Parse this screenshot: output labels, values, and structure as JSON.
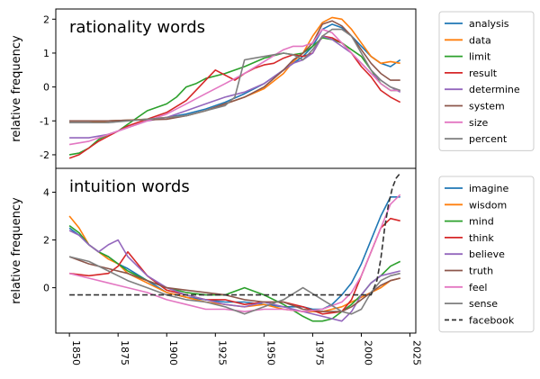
{
  "chart_data": [
    {
      "type": "line",
      "title": "rationality words",
      "ylabel": "relative frequency",
      "xlim": [
        1843,
        2028
      ],
      "ylim": [
        -2.4,
        2.3
      ],
      "yticks": [
        -2,
        -1,
        0,
        1,
        2
      ],
      "legend_position": "right",
      "series": [
        {
          "name": "analysis",
          "color": "#1f77b4",
          "x": [
            1850,
            1860,
            1870,
            1880,
            1890,
            1900,
            1910,
            1920,
            1930,
            1940,
            1950,
            1960,
            1965,
            1970,
            1975,
            1980,
            1985,
            1990,
            1995,
            2000,
            2005,
            2010,
            2015,
            2020
          ],
          "y": [
            -1.0,
            -1.0,
            -1.0,
            -0.98,
            -0.95,
            -0.9,
            -0.8,
            -0.65,
            -0.45,
            -0.2,
            0.1,
            0.5,
            0.7,
            0.9,
            1.2,
            1.7,
            1.85,
            1.75,
            1.5,
            1.2,
            0.9,
            0.7,
            0.6,
            0.8
          ]
        },
        {
          "name": "data",
          "color": "#ff7f0e",
          "x": [
            1850,
            1860,
            1870,
            1880,
            1890,
            1900,
            1910,
            1920,
            1930,
            1940,
            1950,
            1960,
            1965,
            1970,
            1975,
            1980,
            1985,
            1990,
            1995,
            2000,
            2005,
            2010,
            2015,
            2020
          ],
          "y": [
            -1.05,
            -1.05,
            -1.0,
            -0.98,
            -0.95,
            -0.9,
            -0.85,
            -0.7,
            -0.5,
            -0.3,
            -0.05,
            0.4,
            0.75,
            1.0,
            1.5,
            1.9,
            2.05,
            2.0,
            1.7,
            1.3,
            0.9,
            0.7,
            0.75,
            0.7
          ]
        },
        {
          "name": "limit",
          "color": "#2ca02c",
          "x": [
            1850,
            1855,
            1860,
            1865,
            1870,
            1875,
            1880,
            1890,
            1900,
            1905,
            1910,
            1915,
            1920,
            1930,
            1940,
            1950,
            1960,
            1965,
            1970,
            1975,
            1980,
            1985,
            1990,
            1995,
            2000,
            2005,
            2010,
            2015,
            2020
          ],
          "y": [
            -2.0,
            -1.95,
            -1.8,
            -1.55,
            -1.4,
            -1.3,
            -1.1,
            -0.7,
            -0.5,
            -0.3,
            0.0,
            0.1,
            0.25,
            0.4,
            0.6,
            0.85,
            1.0,
            0.95,
            1.0,
            1.2,
            1.45,
            1.4,
            1.3,
            1.1,
            0.9,
            0.5,
            0.1,
            -0.1,
            -0.1
          ]
        },
        {
          "name": "result",
          "color": "#d62728",
          "x": [
            1850,
            1855,
            1860,
            1865,
            1870,
            1875,
            1880,
            1890,
            1900,
            1910,
            1915,
            1920,
            1925,
            1930,
            1935,
            1940,
            1945,
            1950,
            1955,
            1960,
            1965,
            1970,
            1975,
            1980,
            1985,
            1990,
            1995,
            2000,
            2005,
            2010,
            2015,
            2020
          ],
          "y": [
            -2.1,
            -2.0,
            -1.8,
            -1.6,
            -1.45,
            -1.3,
            -1.15,
            -0.95,
            -0.75,
            -0.4,
            -0.1,
            0.2,
            0.5,
            0.35,
            0.2,
            0.4,
            0.55,
            0.65,
            0.7,
            0.85,
            0.95,
            0.9,
            1.0,
            1.5,
            1.45,
            1.3,
            1.0,
            0.6,
            0.3,
            -0.1,
            -0.3,
            -0.45
          ]
        },
        {
          "name": "determine",
          "color": "#9467bd",
          "x": [
            1850,
            1860,
            1870,
            1880,
            1890,
            1900,
            1910,
            1920,
            1930,
            1940,
            1950,
            1960,
            1965,
            1970,
            1975,
            1980,
            1985,
            1990,
            1995,
            2000,
            2005,
            2010,
            2015,
            2020
          ],
          "y": [
            -1.5,
            -1.5,
            -1.4,
            -1.2,
            -1.0,
            -0.9,
            -0.7,
            -0.5,
            -0.3,
            -0.15,
            0.1,
            0.5,
            0.7,
            0.8,
            1.0,
            1.5,
            1.4,
            1.2,
            1.0,
            0.7,
            0.4,
            0.2,
            0.0,
            -0.15
          ]
        },
        {
          "name": "system",
          "color": "#8c564b",
          "x": [
            1850,
            1860,
            1870,
            1880,
            1890,
            1900,
            1910,
            1920,
            1930,
            1940,
            1950,
            1960,
            1965,
            1970,
            1975,
            1980,
            1985,
            1990,
            1995,
            2000,
            2005,
            2010,
            2015,
            2020
          ],
          "y": [
            -1.0,
            -1.0,
            -1.0,
            -0.98,
            -0.97,
            -0.95,
            -0.85,
            -0.7,
            -0.5,
            -0.3,
            0.0,
            0.5,
            0.8,
            1.0,
            1.3,
            1.85,
            1.95,
            1.8,
            1.5,
            1.1,
            0.7,
            0.4,
            0.2,
            0.2
          ]
        },
        {
          "name": "size",
          "color": "#e377c2",
          "x": [
            1850,
            1860,
            1870,
            1880,
            1890,
            1900,
            1910,
            1920,
            1930,
            1940,
            1950,
            1960,
            1965,
            1970,
            1975,
            1980,
            1985,
            1990,
            1995,
            2000,
            2005,
            2010,
            2015,
            2020
          ],
          "y": [
            -1.7,
            -1.6,
            -1.4,
            -1.2,
            -1.0,
            -0.8,
            -0.5,
            -0.2,
            0.1,
            0.4,
            0.75,
            1.1,
            1.2,
            1.2,
            1.3,
            1.7,
            1.6,
            1.3,
            1.0,
            0.7,
            0.4,
            0.1,
            -0.1,
            -0.1
          ]
        },
        {
          "name": "percent",
          "color": "#7f7f7f",
          "x": [
            1850,
            1860,
            1870,
            1880,
            1890,
            1900,
            1910,
            1920,
            1930,
            1935,
            1940,
            1945,
            1950,
            1955,
            1960,
            1965,
            1970,
            1975,
            1980,
            1985,
            1990,
            1995,
            2000,
            2005,
            2010,
            2015,
            2020
          ],
          "y": [
            -1.05,
            -1.05,
            -1.05,
            -1.0,
            -0.95,
            -0.9,
            -0.85,
            -0.7,
            -0.55,
            -0.3,
            0.8,
            0.85,
            0.9,
            0.95,
            1.0,
            0.95,
            0.8,
            1.1,
            1.5,
            1.7,
            1.7,
            1.5,
            1.0,
            0.5,
            0.2,
            0.0,
            -0.1
          ]
        }
      ]
    },
    {
      "type": "line",
      "title": "intuition words",
      "ylabel": "relative frequency",
      "xlabel": "",
      "xlim": [
        1843,
        2028
      ],
      "ylim": [
        -1.9,
        5.0
      ],
      "yticks": [
        0,
        2,
        4
      ],
      "xticks": [
        1850,
        1875,
        1900,
        1925,
        1950,
        1975,
        2000,
        2025
      ],
      "legend_position": "right",
      "series": [
        {
          "name": "imagine",
          "color": "#1f77b4",
          "x": [
            1850,
            1855,
            1860,
            1865,
            1870,
            1875,
            1880,
            1890,
            1900,
            1910,
            1920,
            1930,
            1940,
            1950,
            1960,
            1970,
            1975,
            1980,
            1985,
            1990,
            1995,
            2000,
            2005,
            2010,
            2015,
            2020
          ],
          "y": [
            2.5,
            2.2,
            1.8,
            1.5,
            1.3,
            1.0,
            0.8,
            0.3,
            -0.2,
            -0.4,
            -0.5,
            -0.6,
            -0.6,
            -0.7,
            -0.8,
            -0.8,
            -0.9,
            -0.9,
            -0.7,
            -0.3,
            0.2,
            1.0,
            2.0,
            3.0,
            3.8,
            3.8
          ]
        },
        {
          "name": "wisdom",
          "color": "#ff7f0e",
          "x": [
            1850,
            1855,
            1860,
            1865,
            1870,
            1875,
            1880,
            1890,
            1900,
            1910,
            1920,
            1930,
            1940,
            1950,
            1960,
            1970,
            1980,
            1990,
            1995,
            2000,
            2005,
            2010,
            2015,
            2020
          ],
          "y": [
            3.0,
            2.5,
            1.8,
            1.5,
            1.2,
            1.0,
            0.6,
            0.2,
            -0.2,
            -0.4,
            -0.6,
            -0.7,
            -0.8,
            -0.7,
            -0.9,
            -1.0,
            -1.0,
            -0.8,
            -0.6,
            -0.4,
            -0.2,
            0.0,
            0.3,
            0.4
          ]
        },
        {
          "name": "mind",
          "color": "#2ca02c",
          "x": [
            1850,
            1855,
            1860,
            1865,
            1870,
            1875,
            1880,
            1890,
            1900,
            1910,
            1920,
            1930,
            1940,
            1950,
            1960,
            1970,
            1975,
            1980,
            1985,
            1990,
            1995,
            2000,
            2005,
            2010,
            2015,
            2020
          ],
          "y": [
            2.6,
            2.3,
            1.8,
            1.5,
            1.3,
            1.0,
            0.7,
            0.3,
            0.0,
            -0.2,
            -0.3,
            -0.3,
            0.0,
            -0.3,
            -0.7,
            -1.2,
            -1.4,
            -1.4,
            -1.3,
            -1.0,
            -0.7,
            -0.3,
            0.2,
            0.5,
            0.9,
            1.1
          ]
        },
        {
          "name": "think",
          "color": "#d62728",
          "x": [
            1850,
            1860,
            1870,
            1875,
            1880,
            1890,
            1900,
            1910,
            1920,
            1930,
            1940,
            1950,
            1960,
            1970,
            1980,
            1990,
            1995,
            2000,
            2005,
            2010,
            2015,
            2020
          ],
          "y": [
            0.6,
            0.5,
            0.6,
            0.9,
            1.5,
            0.5,
            -0.1,
            -0.3,
            -0.5,
            -0.5,
            -0.7,
            -0.6,
            -0.6,
            -0.8,
            -1.1,
            -1.0,
            -0.5,
            0.5,
            1.5,
            2.5,
            2.9,
            2.8
          ]
        },
        {
          "name": "believe",
          "color": "#9467bd",
          "x": [
            1850,
            1855,
            1860,
            1865,
            1870,
            1875,
            1880,
            1890,
            1900,
            1910,
            1920,
            1930,
            1940,
            1950,
            1960,
            1970,
            1980,
            1990,
            1995,
            2000,
            2005,
            2010,
            2015,
            2020
          ],
          "y": [
            2.4,
            2.2,
            1.8,
            1.5,
            1.8,
            2.0,
            1.3,
            0.5,
            0.0,
            -0.3,
            -0.5,
            -0.7,
            -0.8,
            -0.6,
            -0.8,
            -1.0,
            -1.2,
            -1.4,
            -1.0,
            -0.3,
            0.2,
            0.5,
            0.6,
            0.7
          ]
        },
        {
          "name": "truth",
          "color": "#8c564b",
          "x": [
            1850,
            1860,
            1870,
            1880,
            1890,
            1900,
            1910,
            1920,
            1930,
            1940,
            1950,
            1960,
            1970,
            1980,
            1990,
            1995,
            2000,
            2005,
            2010,
            2015,
            2020
          ],
          "y": [
            1.3,
            1.0,
            0.8,
            0.6,
            0.3,
            0.0,
            -0.1,
            -0.2,
            -0.3,
            -0.5,
            -0.6,
            -0.6,
            -0.9,
            -1.0,
            -1.0,
            -0.8,
            -0.5,
            -0.2,
            0.1,
            0.3,
            0.4
          ]
        },
        {
          "name": "feel",
          "color": "#e377c2",
          "x": [
            1850,
            1860,
            1870,
            1880,
            1890,
            1900,
            1910,
            1920,
            1930,
            1940,
            1950,
            1960,
            1970,
            1980,
            1990,
            1995,
            2000,
            2005,
            2010,
            2015,
            2020
          ],
          "y": [
            0.6,
            0.4,
            0.2,
            0.0,
            -0.2,
            -0.5,
            -0.7,
            -0.9,
            -0.9,
            -1.0,
            -0.9,
            -0.9,
            -1.0,
            -0.9,
            -0.6,
            -0.2,
            0.5,
            1.5,
            2.5,
            3.5,
            3.9
          ]
        },
        {
          "name": "sense",
          "color": "#7f7f7f",
          "x": [
            1850,
            1860,
            1870,
            1880,
            1890,
            1900,
            1910,
            1920,
            1930,
            1940,
            1950,
            1960,
            1970,
            1980,
            1990,
            1995,
            2000,
            2005,
            2010,
            2015,
            2020
          ],
          "y": [
            1.3,
            1.1,
            0.7,
            0.3,
            0.0,
            -0.3,
            -0.5,
            -0.6,
            -0.8,
            -1.1,
            -0.8,
            -0.5,
            0.0,
            -0.5,
            -1.0,
            -1.1,
            -0.9,
            -0.2,
            0.3,
            0.5,
            0.6
          ]
        },
        {
          "name": "facebook",
          "color": "#333333",
          "dashed": true,
          "x": [
            1850,
            1900,
            1950,
            2000,
            2005,
            2008,
            2010,
            2012,
            2014,
            2016,
            2018,
            2020
          ],
          "y": [
            -0.3,
            -0.3,
            -0.3,
            -0.3,
            -0.3,
            0.3,
            1.2,
            2.5,
            3.5,
            4.2,
            4.6,
            4.8
          ]
        }
      ]
    }
  ]
}
